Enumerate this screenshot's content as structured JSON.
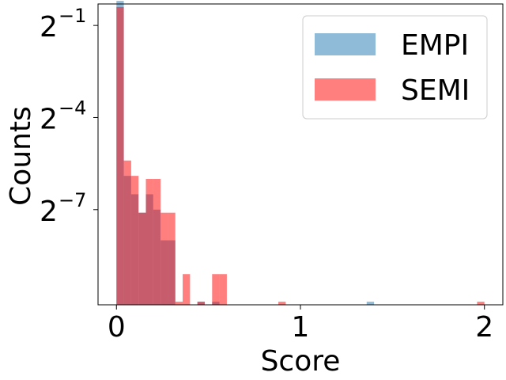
{
  "chart_data": {
    "type": "histogram",
    "xlabel": "Score",
    "ylabel": "Counts",
    "y_scale": "log2",
    "xlim": [
      -0.1,
      2.1
    ],
    "ylim_log2": [
      -10.1,
      -0.3
    ],
    "bin_width": 0.04,
    "x_ticks": [
      {
        "value": 0,
        "label": "0"
      },
      {
        "value": 1,
        "label": "1"
      },
      {
        "value": 2,
        "label": "2"
      }
    ],
    "y_ticks": [
      {
        "exponent": -1,
        "label_base": "2",
        "label_exp": "−1"
      },
      {
        "exponent": -4,
        "label_base": "2",
        "label_exp": "−4"
      },
      {
        "exponent": -7,
        "label_base": "2",
        "label_exp": "−7"
      }
    ],
    "legend": {
      "location": "upper right"
    },
    "series": [
      {
        "name": "EMPI",
        "color": "#1f77b4",
        "alpha": 0.5,
        "bins": [
          {
            "x": 0.0,
            "log2_count": -0.2
          },
          {
            "x": 0.04,
            "log2_count": -5.9
          },
          {
            "x": 0.08,
            "log2_count": -6.5
          },
          {
            "x": 0.12,
            "log2_count": -7.1
          },
          {
            "x": 0.16,
            "log2_count": -6.5
          },
          {
            "x": 0.2,
            "log2_count": -7.0
          },
          {
            "x": 0.24,
            "log2_count": -8.0
          },
          {
            "x": 0.28,
            "log2_count": -8.0
          },
          {
            "x": 0.44,
            "log2_count": -10.0
          },
          {
            "x": 0.52,
            "log2_count": -10.0
          },
          {
            "x": 1.36,
            "log2_count": -10.0
          }
        ]
      },
      {
        "name": "SEMI",
        "color": "#ff0000",
        "alpha": 0.5,
        "bins": [
          {
            "x": 0.0,
            "log2_count": -0.4
          },
          {
            "x": 0.04,
            "log2_count": -5.4
          },
          {
            "x": 0.08,
            "log2_count": -5.9
          },
          {
            "x": 0.12,
            "log2_count": -7.1
          },
          {
            "x": 0.16,
            "log2_count": -6.0
          },
          {
            "x": 0.2,
            "log2_count": -6.0
          },
          {
            "x": 0.24,
            "log2_count": -7.1
          },
          {
            "x": 0.28,
            "log2_count": -7.1
          },
          {
            "x": 0.32,
            "log2_count": -10.0
          },
          {
            "x": 0.36,
            "log2_count": -9.1
          },
          {
            "x": 0.44,
            "log2_count": -10.0
          },
          {
            "x": 0.52,
            "log2_count": -9.1
          },
          {
            "x": 0.56,
            "log2_count": -9.1
          },
          {
            "x": 0.88,
            "log2_count": -10.0
          },
          {
            "x": 1.96,
            "log2_count": -10.0
          }
        ]
      }
    ]
  }
}
